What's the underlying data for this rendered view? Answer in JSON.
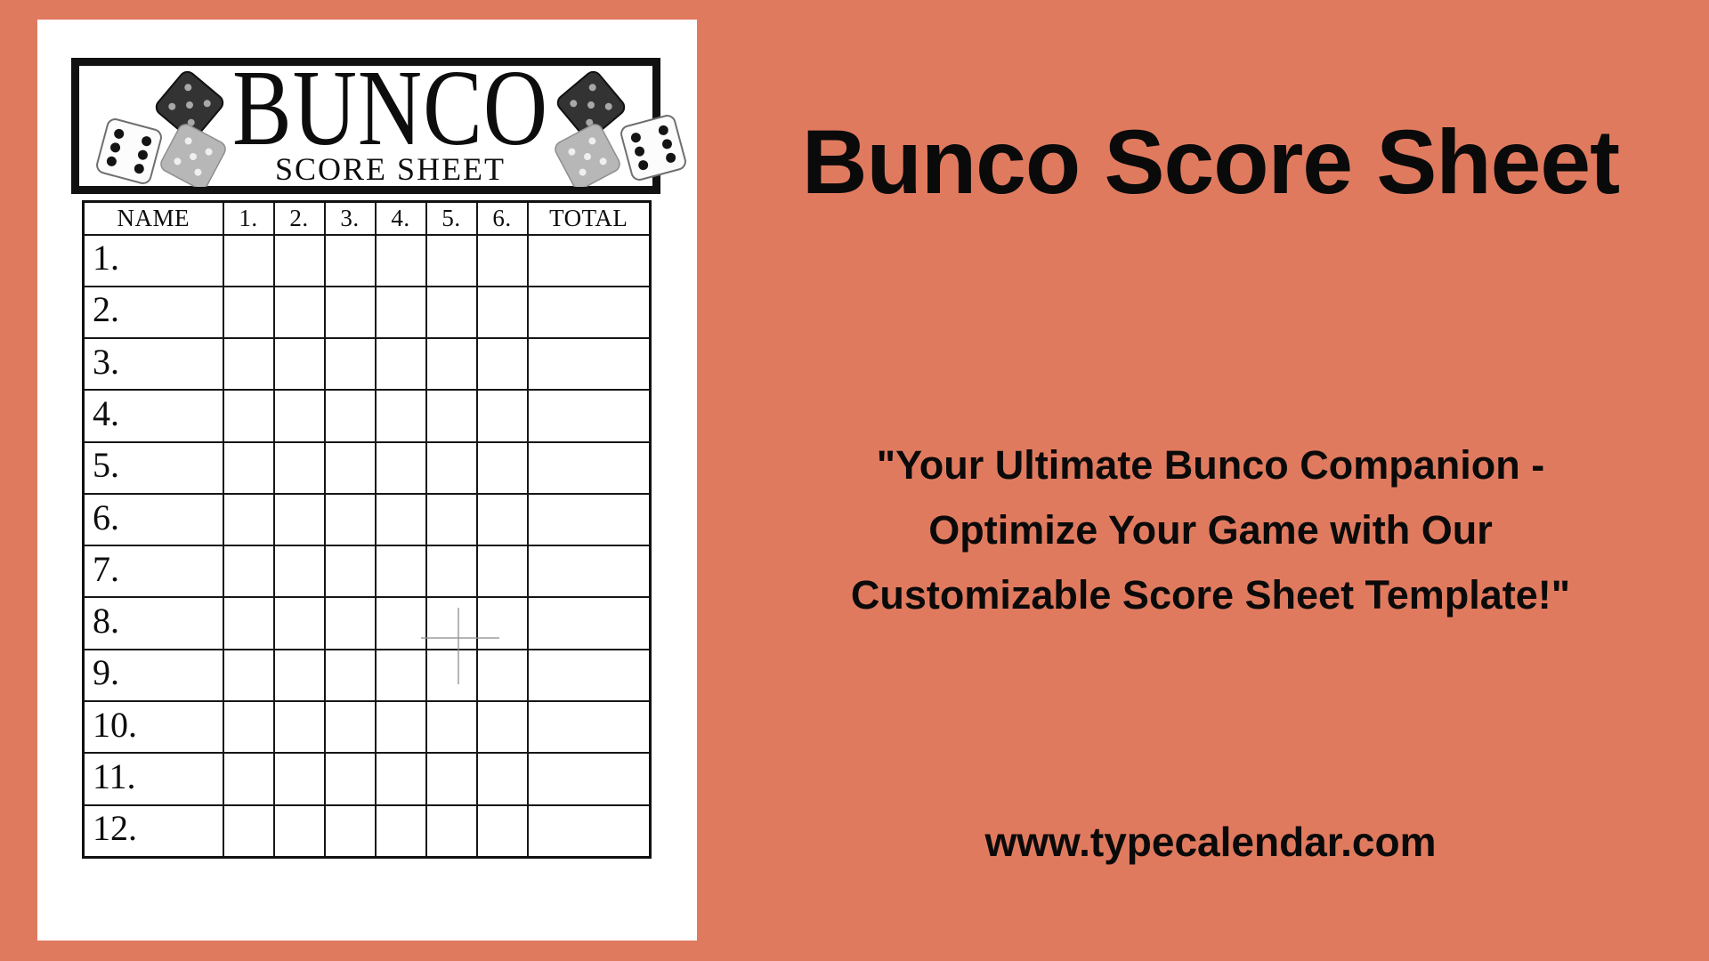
{
  "colors": {
    "background": "#e07a5f",
    "sheet": "#ffffff",
    "ink": "#111111",
    "artifact_gray": "#8f8f8f"
  },
  "sheet": {
    "header": {
      "title": "BUNCO",
      "subtitle": "SCORE SHEET"
    },
    "icons": {
      "left": "dice-cluster-left",
      "right": "dice-cluster-right"
    },
    "table": {
      "columns": [
        "NAME",
        "1.",
        "2.",
        "3.",
        "4.",
        "5.",
        "6.",
        "TOTAL"
      ],
      "rows": [
        "1.",
        "2.",
        "3.",
        "4.",
        "5.",
        "6.",
        "7.",
        "8.",
        "9.",
        "10.",
        "11.",
        "12."
      ]
    }
  },
  "panel": {
    "title": "Bunco Score Sheet",
    "quote_lines": [
      "\"Your Ultimate Bunco Companion -",
      "Optimize Your Game with Our",
      "Customizable Score Sheet Template!\""
    ],
    "website": "www.typecalendar.com"
  }
}
